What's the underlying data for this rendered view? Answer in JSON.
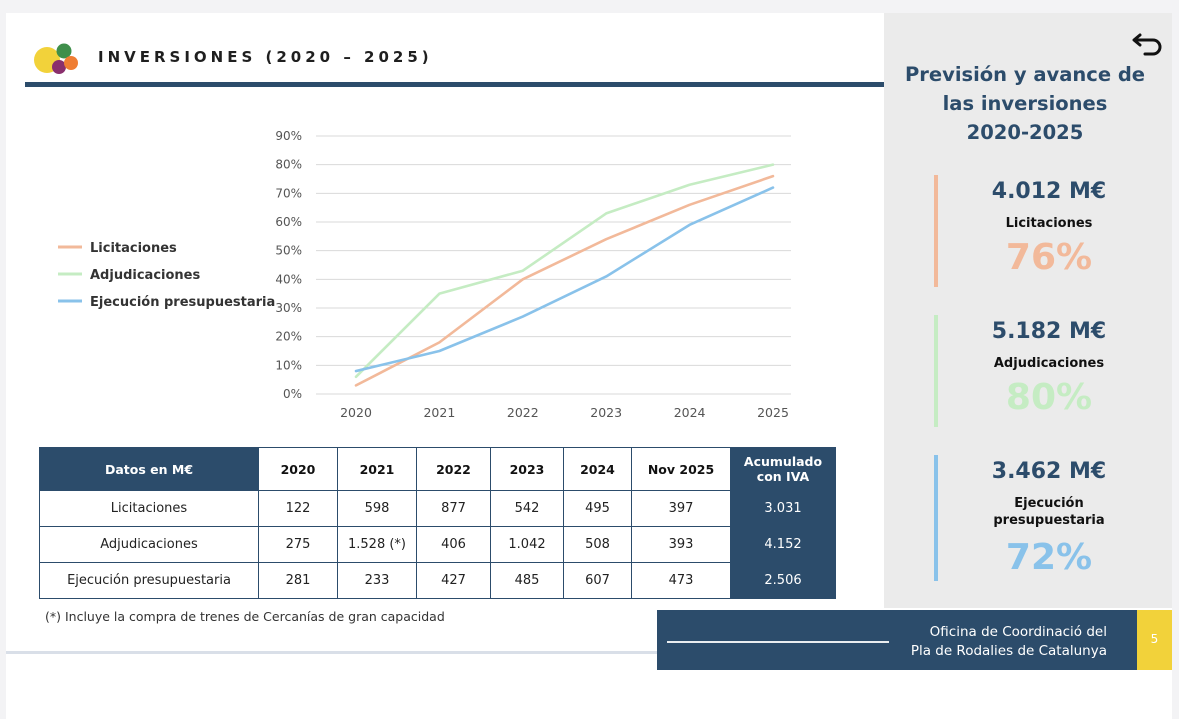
{
  "header": {
    "title": "INVERSIONES (2020 – 2025)"
  },
  "colors": {
    "licitaciones": "#f2b99a",
    "adjudicaciones": "#c5ecc3",
    "ejecucion": "#89c2ea",
    "navy": "#2c4c6b",
    "accent_yellow": "#f2d23a"
  },
  "chart_data": {
    "type": "line",
    "x": [
      "2020",
      "2021",
      "2022",
      "2023",
      "2024",
      "2025"
    ],
    "y_ticks": [
      "0%",
      "10%",
      "20%",
      "30%",
      "40%",
      "50%",
      "60%",
      "70%",
      "80%",
      "90%"
    ],
    "ylim": [
      0,
      90
    ],
    "grid": true,
    "legend_position": "left",
    "series": [
      {
        "name": "Licitaciones",
        "color": "#f2b99a",
        "values": [
          3,
          18,
          40,
          54,
          66,
          76
        ]
      },
      {
        "name": "Adjudicaciones",
        "color": "#c5ecc3",
        "values": [
          6,
          35,
          43,
          63,
          73,
          80
        ]
      },
      {
        "name": "Ejecución presupuestaria",
        "color": "#89c2ea",
        "values": [
          8,
          15,
          27,
          41,
          59,
          72
        ]
      }
    ]
  },
  "table": {
    "headers": [
      "Datos en M€",
      "2020",
      "2021",
      "2022",
      "2023",
      "2024",
      "Nov 2025",
      "Acumulado con IVA"
    ],
    "rows": [
      {
        "label": "Licitaciones",
        "values": [
          "122",
          "598",
          "877",
          "542",
          "495",
          "397"
        ],
        "total": "3.031"
      },
      {
        "label": "Adjudicaciones",
        "values": [
          "275",
          "1.528 (*)",
          "406",
          "1.042",
          "508",
          "393"
        ],
        "total": "4.152"
      },
      {
        "label": "Ejecución presupuestaria",
        "values": [
          "281",
          "233",
          "427",
          "485",
          "607",
          "473"
        ],
        "total": "2.506"
      }
    ]
  },
  "footnote": "(*) Incluye la compra de trenes de Cercanías de gran capacidad",
  "footer": {
    "line1": "Oficina de Coordinació del",
    "line2": "Pla de Rodalies de Catalunya",
    "page_number": "5"
  },
  "side_panel": {
    "title_lines": [
      "Previsión y avance de",
      "las inversiones",
      "2020-2025"
    ],
    "metrics": [
      {
        "amount": "4.012 M€",
        "label": "Licitaciones",
        "percent": "76%",
        "color": "#f2b99a"
      },
      {
        "amount": "5.182 M€",
        "label": "Adjudicaciones",
        "percent": "80%",
        "color": "#c5ecc3"
      },
      {
        "amount": "3.462 M€",
        "label_lines": [
          "Ejecución",
          "presupuestaria"
        ],
        "percent": "72%",
        "color": "#89c2ea"
      }
    ]
  },
  "icons": {
    "logo": "circles-logo-icon",
    "back": "back-arrow-icon"
  }
}
